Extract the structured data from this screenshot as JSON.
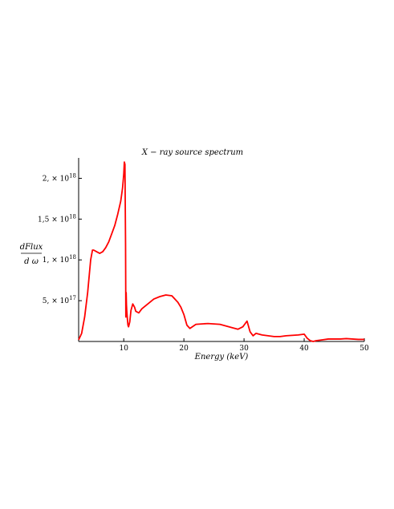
{
  "chart_data": {
    "type": "line",
    "title": "X − ray source spectrum",
    "xlabel": "Energy (keV)",
    "ylabel_numerator": "dFlux",
    "ylabel_denominator": "d ω",
    "xlim": [
      2.5,
      50
    ],
    "ylim": [
      0,
      2.25e+18
    ],
    "line_color": "#ff0000",
    "grid": false,
    "x_ticks": [
      {
        "value": 10,
        "label": "10"
      },
      {
        "value": 20,
        "label": "20"
      },
      {
        "value": 30,
        "label": "30"
      },
      {
        "value": 40,
        "label": "40"
      },
      {
        "value": 50,
        "label": "50"
      }
    ],
    "y_ticks": [
      {
        "value": 5e+17,
        "mantissa": "5, × 10",
        "exponent": "17"
      },
      {
        "value": 1e+18,
        "mantissa": "1, × 10",
        "exponent": "18"
      },
      {
        "value": 1.5e+18,
        "mantissa": "1,5 × 10",
        "exponent": "18"
      },
      {
        "value": 2e+18,
        "mantissa": "2, × 10",
        "exponent": "18"
      }
    ],
    "series": [
      {
        "x": [
          2.5,
          3.0,
          3.5,
          4.0,
          4.5,
          4.8,
          5.0,
          5.5,
          6.0,
          6.5,
          7.0,
          7.5,
          8.0,
          8.5,
          9.0,
          9.5,
          9.8,
          10.0,
          10.1,
          10.2,
          10.3,
          10.35,
          10.4,
          10.45,
          10.5,
          10.6,
          10.7,
          10.8,
          11.0,
          11.2,
          11.5,
          11.8,
          12.0,
          12.5,
          13.0,
          14.0,
          15.0,
          16.0,
          17.0,
          18.0,
          19.0,
          19.5,
          20.0,
          20.5,
          21.0,
          22.0,
          24.0,
          26.0,
          28.0,
          29.0,
          29.8,
          30.2,
          30.5,
          31.0,
          31.5,
          32.0,
          33.0,
          34.0,
          35.0,
          36.0,
          37.0,
          38.0,
          39.0,
          39.5,
          40.0,
          40.5,
          41.0,
          41.5,
          42.0,
          43.0,
          44.0,
          45.0,
          46.0,
          47.0,
          48.0,
          49.0,
          50.0
        ],
        "y": [
          2e+16,
          1e+17,
          3e+17,
          6e+17,
          1e+18,
          1.12e+18,
          1.12e+18,
          1.1e+18,
          1.08e+18,
          1.1e+18,
          1.15e+18,
          1.22e+18,
          1.32e+18,
          1.42e+18,
          1.56e+18,
          1.72e+18,
          1.88e+18,
          2.05e+18,
          2.2e+18,
          2.17e+18,
          1.2e+18,
          3e+17,
          6e+17,
          4.5e+17,
          3.8e+17,
          2.8e+17,
          2e+17,
          1.8e+17,
          2.4e+17,
          3.8e+17,
          4.6e+17,
          4.2e+17,
          3.7e+17,
          3.5e+17,
          4e+17,
          4.6e+17,
          5.2e+17,
          5.5e+17,
          5.7e+17,
          5.6e+17,
          4.8e+17,
          4.2e+17,
          3.3e+17,
          2e+17,
          1.6e+17,
          2.1e+17,
          2.2e+17,
          2.1e+17,
          1.7e+17,
          1.5e+17,
          1.8e+17,
          2.2e+17,
          2.5e+17,
          1.2e+17,
          7e+16,
          1e+17,
          8e+16,
          7e+16,
          6e+16,
          6e+16,
          7e+16,
          7.5e+16,
          8e+16,
          8.5e+16,
          9e+16,
          4e+16,
          1e+16,
          0.0,
          1e+16,
          2e+16,
          3e+16,
          3e+16,
          3e+16,
          3.5e+16,
          3e+16,
          2.5e+16,
          2.5e+16
        ]
      }
    ]
  }
}
